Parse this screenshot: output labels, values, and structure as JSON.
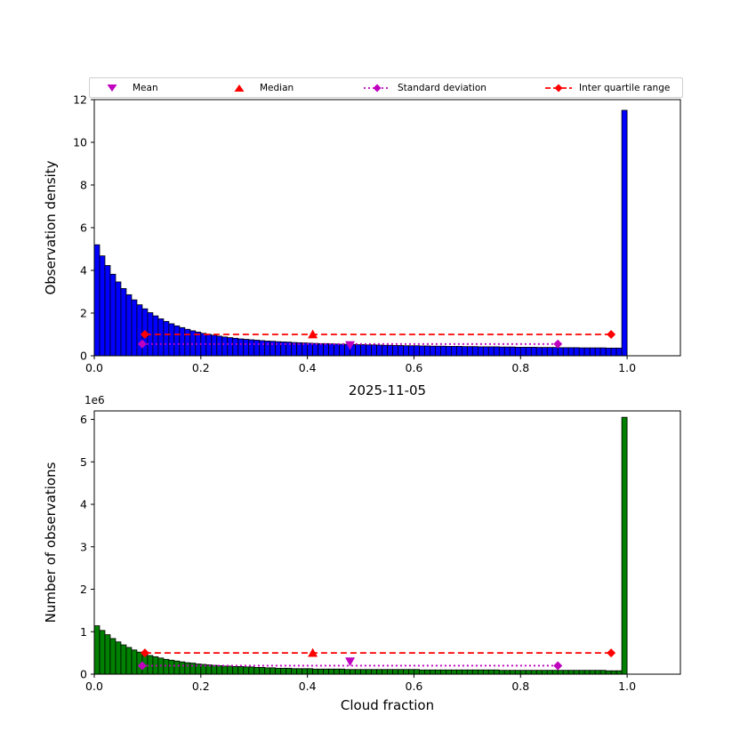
{
  "figure": {
    "title": "2025-11-05",
    "xlabel": "Cloud fraction",
    "offset_text": "1e6",
    "colors": {
      "top_bar": "#0000ff",
      "bottom_bar": "#008000",
      "bar_edge": "#000000",
      "mean": "#bf00bf",
      "median": "#ff0000",
      "std": "#bf00bf",
      "iqr": "#ff0000"
    },
    "legend": [
      {
        "label": "Mean",
        "marker": "triangle-down",
        "color": "#bf00bf"
      },
      {
        "label": "Median",
        "marker": "triangle-up",
        "color": "#ff0000"
      },
      {
        "label": "Standard deviation",
        "marker": "diamond-dotted-line",
        "color": "#bf00bf"
      },
      {
        "label": "Inter quartile range",
        "marker": "diamond-dashed-line",
        "color": "#ff0000"
      }
    ]
  },
  "chart_data": [
    {
      "type": "bar",
      "name": "observation-density-histogram",
      "ylabel": "Observation density",
      "bin_start": 0.0,
      "bin_width": 0.01,
      "xlim": [
        0.0,
        1.1
      ],
      "ylim": [
        0,
        12
      ],
      "xticks": [
        0.0,
        0.2,
        0.4,
        0.6,
        0.8,
        1.0
      ],
      "xtick_labels": [
        "0.0",
        "0.2",
        "0.4",
        "0.6",
        "0.8",
        "1.0"
      ],
      "yticks": [
        0,
        2,
        4,
        6,
        8,
        10,
        12
      ],
      "ytick_labels": [
        "0",
        "2",
        "4",
        "6",
        "8",
        "10",
        "12"
      ],
      "bar_color": "#0000ff",
      "values": [
        5.2,
        4.68,
        4.23,
        3.82,
        3.46,
        3.15,
        2.86,
        2.62,
        2.39,
        2.2,
        2.02,
        1.87,
        1.73,
        1.61,
        1.5,
        1.4,
        1.32,
        1.24,
        1.17,
        1.11,
        1.05,
        1.0,
        0.96,
        0.92,
        0.88,
        0.85,
        0.82,
        0.79,
        0.77,
        0.75,
        0.73,
        0.71,
        0.69,
        0.68,
        0.66,
        0.65,
        0.64,
        0.62,
        0.61,
        0.6,
        0.59,
        0.58,
        0.57,
        0.57,
        0.56,
        0.55,
        0.54,
        0.54,
        0.53,
        0.52,
        0.52,
        0.51,
        0.51,
        0.5,
        0.49,
        0.49,
        0.48,
        0.48,
        0.47,
        0.47,
        0.47,
        0.46,
        0.46,
        0.45,
        0.45,
        0.45,
        0.44,
        0.44,
        0.44,
        0.43,
        0.43,
        0.43,
        0.42,
        0.42,
        0.42,
        0.42,
        0.41,
        0.41,
        0.41,
        0.4,
        0.4,
        0.4,
        0.4,
        0.39,
        0.39,
        0.39,
        0.39,
        0.38,
        0.38,
        0.38,
        0.38,
        0.37,
        0.37,
        0.37,
        0.37,
        0.37,
        0.36,
        0.36,
        0.36,
        11.5
      ],
      "annotations": {
        "mean": {
          "x": 0.48,
          "y": 0.5
        },
        "median": {
          "x": 0.41,
          "y": 1.0
        },
        "std_range": {
          "x1": 0.09,
          "x2": 0.87,
          "y": 0.55
        },
        "iqr_range": {
          "x1": 0.095,
          "x2": 0.97,
          "y": 1.0
        }
      }
    },
    {
      "type": "bar",
      "name": "observation-count-histogram",
      "ylabel": "Number of observations",
      "y_scale": "1e6",
      "bin_start": 0.0,
      "bin_width": 0.01,
      "xlim": [
        0.0,
        1.1
      ],
      "ylim": [
        0,
        6.2
      ],
      "xticks": [
        0.0,
        0.2,
        0.4,
        0.6,
        0.8,
        1.0
      ],
      "xtick_labels": [
        "0.0",
        "0.2",
        "0.4",
        "0.6",
        "0.8",
        "1.0"
      ],
      "yticks": [
        0,
        1,
        2,
        3,
        4,
        5,
        6
      ],
      "ytick_labels": [
        "0",
        "1",
        "2",
        "3",
        "4",
        "5",
        "6"
      ],
      "bar_color": "#008000",
      "values": [
        1.14,
        1.03,
        0.93,
        0.84,
        0.76,
        0.69,
        0.63,
        0.57,
        0.52,
        0.48,
        0.44,
        0.41,
        0.38,
        0.35,
        0.33,
        0.31,
        0.29,
        0.27,
        0.26,
        0.24,
        0.23,
        0.22,
        0.21,
        0.2,
        0.19,
        0.19,
        0.18,
        0.18,
        0.17,
        0.17,
        0.16,
        0.16,
        0.15,
        0.15,
        0.14,
        0.14,
        0.14,
        0.13,
        0.13,
        0.13,
        0.13,
        0.12,
        0.12,
        0.12,
        0.12,
        0.12,
        0.12,
        0.11,
        0.11,
        0.11,
        0.11,
        0.11,
        0.11,
        0.11,
        0.11,
        0.11,
        0.11,
        0.11,
        0.11,
        0.11,
        0.11,
        0.1,
        0.1,
        0.1,
        0.1,
        0.1,
        0.1,
        0.1,
        0.1,
        0.1,
        0.1,
        0.1,
        0.1,
        0.1,
        0.1,
        0.1,
        0.09,
        0.09,
        0.09,
        0.09,
        0.09,
        0.09,
        0.09,
        0.09,
        0.09,
        0.09,
        0.09,
        0.09,
        0.09,
        0.09,
        0.09,
        0.09,
        0.09,
        0.09,
        0.09,
        0.09,
        0.08,
        0.08,
        0.08,
        6.05
      ],
      "annotations": {
        "mean": {
          "x": 0.48,
          "y": 0.3
        },
        "median": {
          "x": 0.41,
          "y": 0.5
        },
        "std_range": {
          "x1": 0.09,
          "x2": 0.87,
          "y": 0.2
        },
        "iqr_range": {
          "x1": 0.095,
          "x2": 0.97,
          "y": 0.5
        }
      }
    }
  ]
}
